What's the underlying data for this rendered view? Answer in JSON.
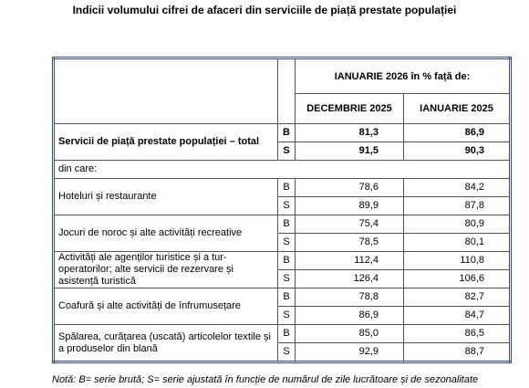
{
  "title": "Indicii volumului cifrei de afaceri din serviciile de piață prestate populației",
  "table": {
    "header": {
      "group": "IANUARIE 2026 în % față de:",
      "columns": [
        "DECEMBRIE 2025",
        "IANUARIE 2025"
      ]
    },
    "rows": [
      {
        "label": "Servicii de piață prestate populației – total",
        "emphasis": true,
        "series": [
          [
            "B",
            "81,3",
            "86,9"
          ],
          [
            "S",
            "91,5",
            "90,3"
          ]
        ]
      },
      {
        "label": "din care:"
      },
      {
        "label": "Hoteluri și restaurante",
        "series": [
          [
            "B",
            "78,6",
            "84,2"
          ],
          [
            "S",
            "89,9",
            "87,8"
          ]
        ]
      },
      {
        "label": "Jocuri de noroc și alte activități recreative",
        "series": [
          [
            "B",
            "75,4",
            "80,9"
          ],
          [
            "S",
            "78,5",
            "80,1"
          ]
        ]
      },
      {
        "label": "Activități ale agenților turistice și a tur-operatorilor; alte servicii de rezervare și asistență turistică",
        "series": [
          [
            "B",
            "112,4",
            "110,8"
          ],
          [
            "S",
            "126,4",
            "106,6"
          ]
        ]
      },
      {
        "label": "Coafură și alte activități de înfrumusețare",
        "series": [
          [
            "B",
            "78,8",
            "82,7"
          ],
          [
            "S",
            "86,9",
            "84,7"
          ]
        ]
      },
      {
        "label": "Spălarea, curățarea (uscată) articolelor textile și a produselor din blană",
        "series": [
          [
            "B",
            "85,0",
            "86,5"
          ],
          [
            "S",
            "92,9",
            "88,7"
          ]
        ]
      }
    ]
  },
  "note": "Notă: B= serie brută; S= serie ajustată în funcție de numărul de zile lucrătoare și de sezonalitate"
}
